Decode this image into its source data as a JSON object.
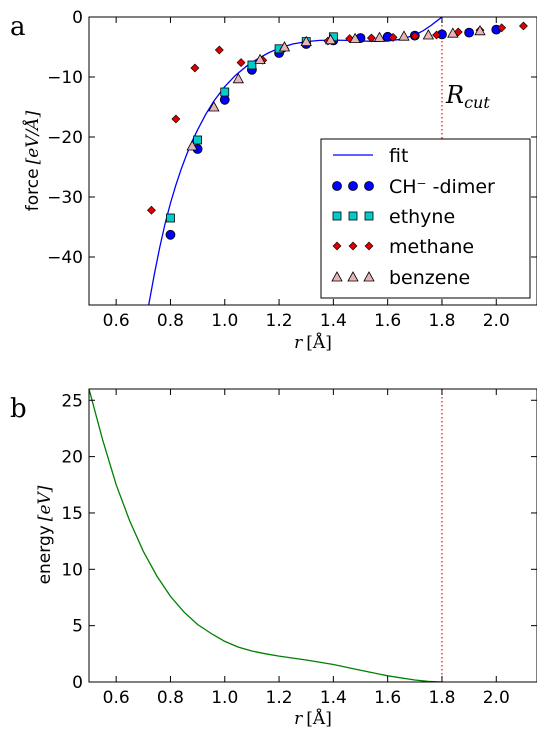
{
  "chart_data": [
    {
      "panel": "a",
      "type": "scatter",
      "xlabel_var": "r",
      "xlabel_unit": "[Å]",
      "ylabel_word": "force",
      "ylabel_unit": "[eV/Å]",
      "xlim": [
        0.5,
        2.15
      ],
      "ylim": [
        -48,
        0
      ],
      "xticks": [
        0.6,
        0.8,
        1.0,
        1.2,
        1.4,
        1.6,
        1.8,
        2.0
      ],
      "xtick_labels": [
        "0.6",
        "0.8",
        "1.0",
        "1.2",
        "1.4",
        "1.6",
        "1.8",
        "2.0"
      ],
      "yticks": [
        0,
        -10,
        -20,
        -30,
        -40
      ],
      "ytick_labels": [
        "0",
        "−10",
        "−20",
        "−30",
        "−40"
      ],
      "cutoff_x": 1.8,
      "cutoff_label_main": "R",
      "cutoff_label_sub": "cut",
      "legend_position": "lower-right",
      "series": [
        {
          "name": "fit",
          "kind": "line",
          "color": "#0000ff",
          "x": [
            0.72,
            0.74,
            0.76,
            0.78,
            0.8,
            0.82,
            0.84,
            0.86,
            0.88,
            0.9,
            0.93,
            0.96,
            1.0,
            1.04,
            1.08,
            1.12,
            1.16,
            1.2,
            1.25,
            1.3,
            1.35,
            1.4,
            1.45,
            1.5,
            1.55,
            1.6,
            1.65,
            1.7,
            1.73,
            1.76,
            1.78,
            1.8
          ],
          "y": [
            -48.0,
            -43.0,
            -38.5,
            -34.5,
            -31.0,
            -28.0,
            -25.3,
            -22.9,
            -20.7,
            -18.8,
            -16.2,
            -14.0,
            -11.6,
            -9.7,
            -8.2,
            -7.0,
            -6.0,
            -5.2,
            -4.5,
            -4.1,
            -3.9,
            -3.85,
            -3.9,
            -4.0,
            -4.05,
            -4.0,
            -3.7,
            -3.0,
            -2.3,
            -1.4,
            -0.7,
            0.0
          ]
        },
        {
          "name": "CH⁻ -dimer",
          "kind": "marker",
          "marker": "circle",
          "color": "#0000ff",
          "x": [
            0.8,
            0.9,
            1.0,
            1.1,
            1.2,
            1.3,
            1.4,
            1.5,
            1.6,
            1.7,
            1.8,
            1.9,
            2.0
          ],
          "y": [
            -36.3,
            -22.0,
            -13.8,
            -8.8,
            -6.0,
            -4.5,
            -3.9,
            -3.5,
            -3.3,
            -3.1,
            -2.9,
            -2.6,
            -2.1
          ]
        },
        {
          "name": "ethyne",
          "kind": "marker",
          "marker": "square",
          "color": "#00cccc",
          "x": [
            0.8,
            0.9,
            1.0,
            1.1,
            1.2,
            1.3,
            1.4
          ],
          "y": [
            -33.5,
            -20.5,
            -12.5,
            -8.0,
            -5.3,
            -4.1,
            -3.3
          ]
        },
        {
          "name": "methane",
          "kind": "marker",
          "marker": "diamond",
          "color": "#dd0000",
          "x": [
            0.73,
            0.82,
            0.89,
            0.98,
            1.06,
            1.14,
            1.22,
            1.3,
            1.38,
            1.46,
            1.54,
            1.62,
            1.7,
            1.78,
            1.86,
            1.94,
            2.02,
            2.1
          ],
          "y": [
            -32.2,
            -17.0,
            -8.5,
            -5.5,
            -7.6,
            -7.2,
            -5.2,
            -4.3,
            -4.0,
            -3.6,
            -3.5,
            -3.4,
            -3.2,
            -3.0,
            -2.5,
            -2.2,
            -1.8,
            -1.5
          ]
        },
        {
          "name": "benzene",
          "kind": "marker",
          "marker": "triangle",
          "color": "#e8b4b8",
          "x": [
            0.88,
            0.96,
            1.05,
            1.13,
            1.22,
            1.3,
            1.39,
            1.48,
            1.57,
            1.66,
            1.75,
            1.84,
            1.94
          ],
          "y": [
            -21.5,
            -15.0,
            -10.3,
            -7.1,
            -5.0,
            -4.1,
            -3.8,
            -3.6,
            -3.4,
            -3.2,
            -3.0,
            -2.7,
            -2.3
          ]
        }
      ]
    },
    {
      "panel": "b",
      "type": "line",
      "xlabel_var": "r",
      "xlabel_unit": "[Å]",
      "ylabel_word": "energy",
      "ylabel_unit": "[eV]",
      "xlim": [
        0.5,
        2.15
      ],
      "ylim": [
        0,
        26
      ],
      "xticks": [
        0.6,
        0.8,
        1.0,
        1.2,
        1.4,
        1.6,
        1.8,
        2.0
      ],
      "xtick_labels": [
        "0.6",
        "0.8",
        "1.0",
        "1.2",
        "1.4",
        "1.6",
        "1.8",
        "2.0"
      ],
      "yticks": [
        0,
        5,
        10,
        15,
        20,
        25
      ],
      "ytick_labels": [
        "0",
        "5",
        "10",
        "15",
        "20",
        "25"
      ],
      "cutoff_x": 1.8,
      "series": [
        {
          "kind": "line",
          "color": "#008000",
          "x": [
            0.5,
            0.55,
            0.6,
            0.65,
            0.7,
            0.75,
            0.8,
            0.85,
            0.9,
            0.95,
            1.0,
            1.05,
            1.1,
            1.15,
            1.2,
            1.3,
            1.4,
            1.5,
            1.6,
            1.7,
            1.75,
            1.8
          ],
          "y": [
            26.0,
            21.5,
            17.5,
            14.3,
            11.6,
            9.4,
            7.6,
            6.2,
            5.1,
            4.3,
            3.6,
            3.1,
            2.75,
            2.5,
            2.3,
            1.95,
            1.55,
            1.05,
            0.55,
            0.18,
            0.05,
            0.0
          ]
        }
      ]
    }
  ],
  "panel_letters": {
    "a": "a",
    "b": "b"
  },
  "legend_entries": [
    "fit",
    "CH⁻ -dimer",
    "ethyne",
    "methane",
    "benzene"
  ]
}
